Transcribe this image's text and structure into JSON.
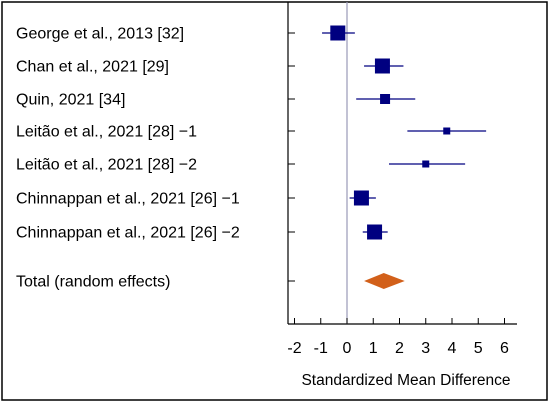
{
  "chart_data": {
    "type": "forest",
    "xlabel": "Standardized Mean Difference",
    "xlim": [
      -2.4,
      6.6
    ],
    "xticks": [
      -2,
      -1,
      0,
      1,
      2,
      3,
      4,
      5,
      6
    ],
    "xtick_labels": [
      "-2",
      "-1",
      "0",
      "1",
      "2",
      "3",
      "4",
      "5",
      "6"
    ],
    "reference_line": 0,
    "studies": [
      {
        "label": "George et al., 2013 [32]",
        "smd": -0.35,
        "ci": [
          -0.95,
          0.3
        ],
        "weight": "large"
      },
      {
        "label": "Chan et al., 2021 [29]",
        "smd": 1.35,
        "ci": [
          0.65,
          2.15
        ],
        "weight": "large"
      },
      {
        "label": "Quin, 2021 [34]",
        "smd": 1.45,
        "ci": [
          0.35,
          2.6
        ],
        "weight": "medium"
      },
      {
        "label": "Leitão et al., 2021 [28] −1",
        "smd": 3.8,
        "ci": [
          2.3,
          5.3
        ],
        "weight": "small"
      },
      {
        "label": "Leitão et al., 2021 [28] −2",
        "smd": 3.0,
        "ci": [
          1.6,
          4.5
        ],
        "weight": "small"
      },
      {
        "label": "Chinnappan et al., 2021 [26] −1",
        "smd": 0.55,
        "ci": [
          0.1,
          1.1
        ],
        "weight": "large"
      },
      {
        "label": "Chinnappan et al., 2021 [26] −2",
        "smd": 1.05,
        "ci": [
          0.6,
          1.55
        ],
        "weight": "large"
      }
    ],
    "pooled": {
      "label": "Total (random effects)",
      "smd": 1.4,
      "ci": [
        0.65,
        2.2
      ]
    },
    "colors": {
      "study_marker": "#000080",
      "pooled_diamond": "#d2601a",
      "reference_line": "#9a9ab8",
      "frame": "#000000"
    }
  }
}
